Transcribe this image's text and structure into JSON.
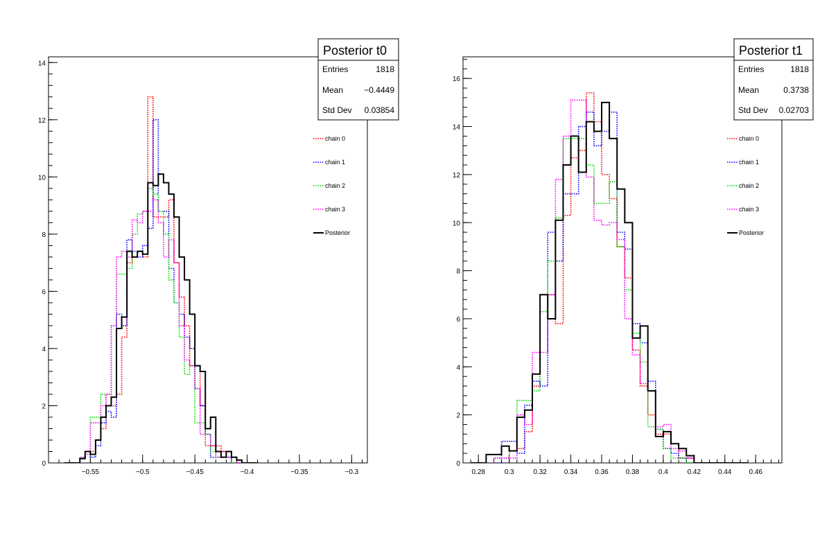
{
  "chart_data": [
    {
      "type": "histogram",
      "title": "Posterior t0",
      "stats": [
        {
          "label": "Entries",
          "value": "1818"
        },
        {
          "label": "Mean",
          "value": "−0.4449"
        },
        {
          "label": "Std Dev",
          "value": "0.03854"
        }
      ],
      "xlim": [
        -0.59,
        -0.285
      ],
      "ylim": [
        0,
        14.2
      ],
      "bin_edges_start": -0.575,
      "bin_width": 0.005,
      "x_ticks": [
        -0.55,
        -0.5,
        -0.45,
        -0.4,
        -0.35,
        -0.3
      ],
      "x_tick_labels": [
        "−0.55",
        "−0.5",
        "−0.45",
        "−0.4",
        "−0.35",
        "−0.3"
      ],
      "y_ticks": [
        0,
        2,
        4,
        6,
        8,
        10,
        12,
        14
      ],
      "y_tick_labels": [
        "0",
        "2",
        "4",
        "6",
        "8",
        "10",
        "12",
        "14"
      ],
      "legend": [
        "chain 0",
        "chain 1",
        "chain 2",
        "chain 3",
        "Posterior"
      ],
      "series": [
        {
          "name": "chain 0",
          "color": "#ff0000",
          "style": "dotted",
          "values": [
            0,
            0,
            0,
            0.2,
            0.4,
            0.4,
            0.8,
            1.2,
            2.4,
            2.0,
            2.4,
            4.4,
            7.0,
            7.2,
            7.4,
            7.2,
            12.8,
            8.6,
            8.6,
            8.6,
            9.2,
            7.0,
            5.8,
            4.8,
            3.4,
            3.4,
            2.0,
            0.6,
            0.6,
            0.6,
            0.4,
            0.2,
            0.2,
            0,
            0,
            0,
            0
          ]
        },
        {
          "name": "chain 1",
          "color": "#0000ff",
          "style": "dotted",
          "values": [
            0,
            0,
            0,
            0.2,
            0.4,
            0.2,
            0.6,
            1.4,
            1.8,
            1.6,
            5.2,
            4.8,
            7.8,
            7.4,
            7.2,
            7.6,
            8.2,
            12.0,
            8.8,
            8.8,
            6.8,
            5.6,
            5.2,
            4.4,
            4.0,
            2.6,
            2.0,
            1.0,
            0.2,
            0.2,
            0.4,
            0.2,
            0,
            0,
            0,
            0,
            0
          ]
        },
        {
          "name": "chain 2",
          "color": "#00dd00",
          "style": "dotted",
          "values": [
            0,
            0,
            0,
            0.2,
            0.4,
            1.6,
            1.6,
            2.4,
            2.4,
            4.8,
            6.6,
            6.6,
            6.8,
            8.0,
            8.7,
            8.8,
            9.6,
            9.4,
            8.8,
            8.0,
            6.4,
            5.6,
            4.4,
            3.1,
            3.4,
            1.4,
            1.4,
            1.0,
            0.4,
            0.2,
            0.2,
            0.2,
            0,
            0,
            0,
            0,
            0
          ]
        },
        {
          "name": "chain 3",
          "color": "#ff00ff",
          "style": "dotted",
          "values": [
            0,
            0,
            0,
            0.2,
            0.3,
            1.4,
            1.4,
            2.0,
            2.4,
            4.8,
            7.2,
            7.4,
            7.2,
            8.5,
            8.4,
            8.8,
            8.8,
            9.2,
            8.4,
            7.2,
            7.8,
            7.0,
            4.8,
            3.6,
            3.4,
            2.6,
            1.0,
            1.0,
            0.6,
            0.2,
            0.4,
            0.2,
            0.2,
            0,
            0,
            0,
            0
          ]
        },
        {
          "name": "Posterior",
          "color": "#000000",
          "style": "solid",
          "values": [
            0,
            0,
            0,
            0.15,
            0.4,
            0.3,
            0.8,
            1.6,
            2.0,
            2.3,
            4.7,
            5.1,
            7.4,
            7.2,
            7.4,
            7.3,
            9.8,
            9.7,
            10.1,
            9.8,
            9.4,
            8.6,
            7.2,
            6.4,
            5.2,
            3.4,
            3.2,
            1.2,
            1.6,
            0.4,
            0.2,
            0.4,
            0.2,
            0.1,
            0,
            0,
            0
          ]
        }
      ]
    },
    {
      "type": "histogram",
      "title": "Posterior t1",
      "stats": [
        {
          "label": "Entries",
          "value": "1818"
        },
        {
          "label": "Mean",
          "value": "0.3738"
        },
        {
          "label": "Std Dev",
          "value": "0.02703"
        }
      ],
      "xlim": [
        0.27,
        0.477
      ],
      "ylim": [
        0,
        16.9
      ],
      "bin_edges_start": 0.275,
      "bin_width": 0.005,
      "x_ticks": [
        0.28,
        0.3,
        0.32,
        0.34,
        0.36,
        0.38,
        0.4,
        0.42,
        0.44,
        0.46
      ],
      "x_tick_labels": [
        "0.28",
        "0.3",
        "0.32",
        "0.34",
        "0.36",
        "0.38",
        "0.4",
        "0.42",
        "0.44",
        "0.46"
      ],
      "y_ticks": [
        0,
        2,
        4,
        6,
        8,
        10,
        12,
        14,
        16
      ],
      "y_tick_labels": [
        "0",
        "2",
        "4",
        "6",
        "8",
        "10",
        "12",
        "14",
        "16"
      ],
      "legend": [
        "chain 0",
        "chain 1",
        "chain 2",
        "chain 3",
        "Posterior"
      ],
      "series": [
        {
          "name": "chain 0",
          "color": "#ff0000",
          "style": "dotted",
          "values": [
            0,
            0,
            0,
            0.2,
            0.2,
            0.5,
            0.6,
            1.3,
            3.2,
            7.0,
            7.0,
            5.8,
            10.3,
            12.7,
            13.0,
            15.4,
            14.2,
            12.0,
            11.0,
            9.0,
            7.7,
            4.7,
            3.2,
            2.0,
            1.2,
            1.2,
            0.8,
            0.2,
            0.2,
            0,
            0,
            0,
            0,
            0,
            0,
            0
          ]
        },
        {
          "name": "chain 1",
          "color": "#0000ff",
          "style": "dotted",
          "values": [
            0,
            0,
            0,
            0,
            0.9,
            0.9,
            0.4,
            2.4,
            3.4,
            3.2,
            9.6,
            8.4,
            11.2,
            11.2,
            14.0,
            14.6,
            13.2,
            13.8,
            14.6,
            9.6,
            8.9,
            5.8,
            5.0,
            3.4,
            1.4,
            0.6,
            0.4,
            0.2,
            0,
            0,
            0,
            0,
            0,
            0,
            0,
            0
          ]
        },
        {
          "name": "chain 2",
          "color": "#00dd00",
          "style": "dotted",
          "values": [
            0,
            0,
            0,
            0.2,
            0.2,
            0.5,
            2.6,
            2.6,
            3.0,
            6.3,
            8.4,
            10.2,
            13.5,
            13.5,
            13.5,
            12.4,
            10.8,
            10.8,
            11.7,
            9.0,
            7.2,
            5.4,
            4.2,
            1.5,
            1.4,
            0.6,
            0.2,
            0.2,
            0,
            0,
            0,
            0,
            0,
            0,
            0,
            0
          ]
        },
        {
          "name": "chain 3",
          "color": "#ff00ff",
          "style": "dotted",
          "values": [
            0,
            0,
            0,
            0.2,
            0.2,
            0.2,
            2.0,
            1.6,
            4.6,
            4.6,
            7.0,
            11.8,
            13.6,
            15.1,
            15.1,
            11.9,
            10.1,
            9.9,
            10.0,
            9.3,
            6.0,
            4.5,
            3.3,
            3.0,
            1.5,
            1.6,
            0.6,
            0.5,
            0.2,
            0,
            0,
            0,
            0,
            0,
            0,
            0
          ]
        },
        {
          "name": "Posterior",
          "color": "#000000",
          "style": "solid",
          "values": [
            0,
            0,
            0.35,
            0.35,
            0.7,
            0.5,
            1.9,
            2.2,
            3.7,
            7.0,
            6.0,
            10.1,
            12.4,
            13.6,
            12.1,
            14.2,
            13.8,
            15.0,
            13.5,
            11.4,
            10.0,
            5.2,
            5.7,
            3.0,
            1.1,
            1.3,
            0.8,
            0.6,
            0.3,
            0,
            0,
            0,
            0,
            0,
            0,
            0
          ]
        }
      ]
    }
  ]
}
